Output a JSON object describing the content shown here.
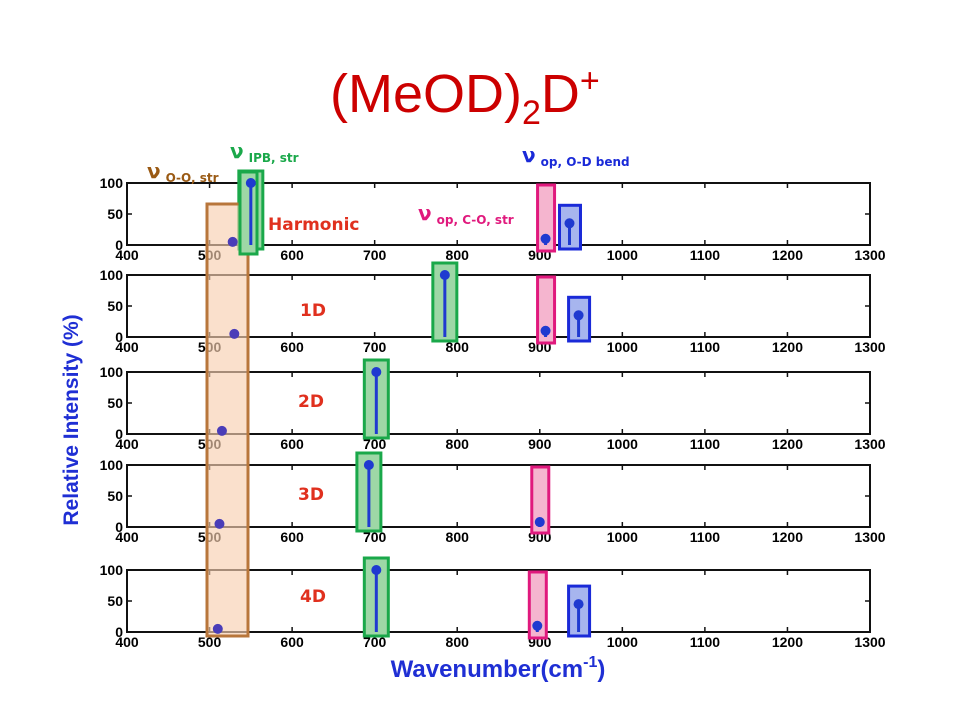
{
  "title": {
    "main": "(MeOD)",
    "sub": "2",
    "main2": "D",
    "sup": "+"
  },
  "colors": {
    "title": "#cc0000",
    "axisLabel": "#1f2fd4",
    "stick": "#1f3ad0",
    "marker": "#4a3db8",
    "orange": "#b8763b",
    "orangeFill": "#f8d0b0",
    "green": "#1aa84a",
    "greenFill": "#9ed7a6",
    "pink": "#e0197d",
    "pinkFill": "#f5b5cf",
    "blue": "#1a2ad8",
    "blueFill": "#a7b5ee",
    "brown": "#9a5a14",
    "panelLabel": "#e0301e"
  },
  "chart_data": {
    "type": "stem",
    "xlabel": "Wavenumber(cm",
    "xlabel_sup": "-1",
    "xlabel_close": ")",
    "ylabel": "Relative Intensity (%)",
    "xlim": [
      400,
      1300
    ],
    "ylim": [
      0,
      100
    ],
    "xticks": [
      "400",
      "500",
      "600",
      "700",
      "800",
      "900",
      "1000",
      "1100",
      "1200",
      "1300"
    ],
    "yticks": [
      "0",
      "50",
      "100"
    ],
    "panels": [
      {
        "label": "Harmonic",
        "sticks": [
          {
            "x": 528,
            "y": 5
          },
          {
            "x": 550,
            "y": 100
          },
          {
            "x": 907,
            "y": 10
          },
          {
            "x": 936,
            "y": 35
          }
        ]
      },
      {
        "label": "1D",
        "sticks": [
          {
            "x": 530,
            "y": 5
          },
          {
            "x": 785,
            "y": 100
          },
          {
            "x": 907,
            "y": 10
          },
          {
            "x": 947,
            "y": 35
          }
        ]
      },
      {
        "label": "2D",
        "sticks": [
          {
            "x": 515,
            "y": 5
          },
          {
            "x": 702,
            "y": 100
          }
        ]
      },
      {
        "label": "3D",
        "sticks": [
          {
            "x": 512,
            "y": 5
          },
          {
            "x": 693,
            "y": 100
          },
          {
            "x": 900,
            "y": 8
          }
        ]
      },
      {
        "label": "4D",
        "sticks": [
          {
            "x": 510,
            "y": 5
          },
          {
            "x": 702,
            "y": 100
          },
          {
            "x": 897,
            "y": 10
          },
          {
            "x": 947,
            "y": 45
          }
        ]
      }
    ],
    "mode_labels": [
      {
        "symbol": "ν",
        "subscript": "O-O, str",
        "color": "brown"
      },
      {
        "symbol": "ν",
        "subscript": "IPB, str",
        "color": "green"
      },
      {
        "symbol": "ν",
        "subscript": "op, C-O, str",
        "color": "pink"
      },
      {
        "symbol": "ν",
        "subscript": "op, O-D bend",
        "color": "blue"
      }
    ]
  }
}
